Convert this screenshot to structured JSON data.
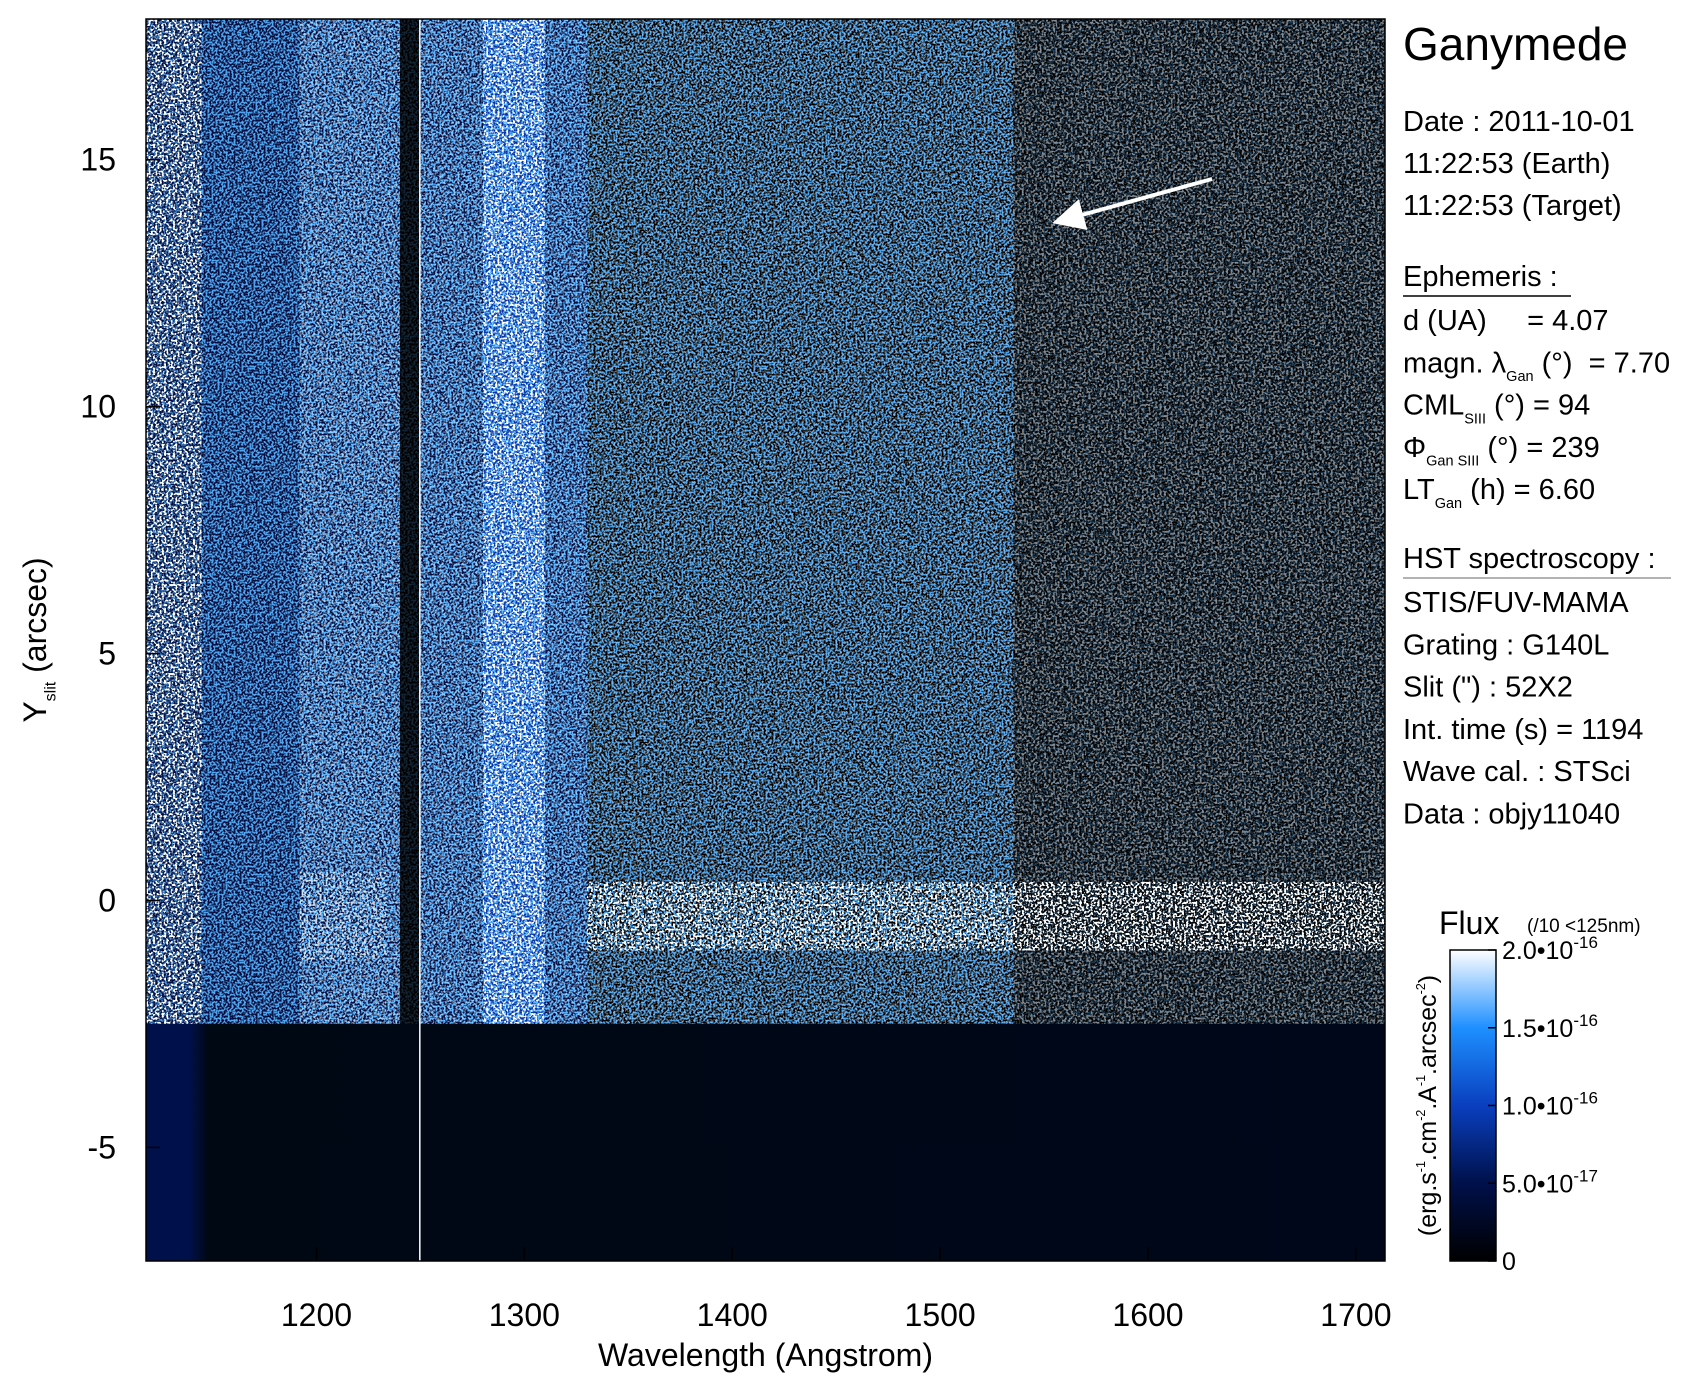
{
  "chart_data": {
    "type": "image",
    "xlabel": "Wavelength (Angstrom)",
    "ylabel": [
      {
        "t": "Y"
      },
      {
        "sub": "slit"
      },
      {
        "t": " (arcsec)"
      }
    ],
    "xlim": [
      1118,
      1714
    ],
    "ylim": [
      -7.3,
      17.85
    ],
    "xticks": [
      1200,
      1300,
      1400,
      1500,
      1600,
      1700
    ],
    "yticks": [
      -5,
      0,
      5,
      10,
      15
    ],
    "colormap": [
      "#000000",
      "#00104a",
      "#0a3fbf",
      "#1e90ff",
      "#ffffff"
    ],
    "colorbar": {
      "title": "Flux",
      "note": "(/10 <125nm)",
      "label": [
        {
          "t": "(erg.s"
        },
        {
          "sup": "-1"
        },
        {
          "t": ".cm"
        },
        {
          "sup": "-2"
        },
        {
          "t": ".A"
        },
        {
          "sup": "-1"
        },
        {
          "t": ".arcsec"
        },
        {
          "sup": "-2"
        },
        {
          "t": ")"
        }
      ],
      "clim": [
        0,
        2e-16
      ],
      "ticks": [
        0,
        {
          "value": 5e-17,
          "label": "5.0•10",
          "exp": "-17"
        },
        {
          "value": 1e-16,
          "label": "1.0•10",
          "exp": "-16"
        },
        {
          "value": 1.5e-16,
          "label": "1.5•10",
          "exp": "-16"
        },
        {
          "value": 2e-16,
          "label": "2.0•10",
          "exp": "-16"
        }
      ]
    }
  },
  "info": {
    "title": "Ganymede",
    "date": [
      [
        {
          "t": "Date : 2011-10-01"
        }
      ],
      [
        {
          "t": "11:22:53 (Earth)"
        }
      ],
      [
        {
          "t": "11:22:53 (Target)"
        }
      ]
    ],
    "ephemeris": {
      "header": "Ephemeris :",
      "lines": [
        [
          {
            "t": "d (UA)     = 4.07"
          }
        ],
        [
          {
            "t": "magn. λ"
          },
          {
            "sub": "Gan"
          },
          {
            "t": " (°)  = 7.70"
          }
        ],
        [
          {
            "t": "CML"
          },
          {
            "sub": "SIII"
          },
          {
            "t": " (°) = 94"
          }
        ],
        [
          {
            "t": "Φ"
          },
          {
            "sub": "Gan SIII"
          },
          {
            "t": " (°) = 239"
          }
        ],
        [
          {
            "t": "LT"
          },
          {
            "sub": "Gan"
          },
          {
            "t": " (h) = 6.60"
          }
        ]
      ]
    },
    "hst": {
      "header": "HST spectroscopy :",
      "lines": [
        [
          {
            "t": "STIS/FUV-MAMA"
          }
        ],
        [
          {
            "t": "Grating : G140L"
          }
        ],
        [
          {
            "t": "Slit (\") : 52X2"
          }
        ],
        [
          {
            "t": "Int. time (s) = 1194"
          }
        ],
        [
          {
            "t": "Wave cal. : STSci"
          }
        ],
        [
          {
            "t": "Data : objy11040"
          }
        ]
      ]
    }
  }
}
